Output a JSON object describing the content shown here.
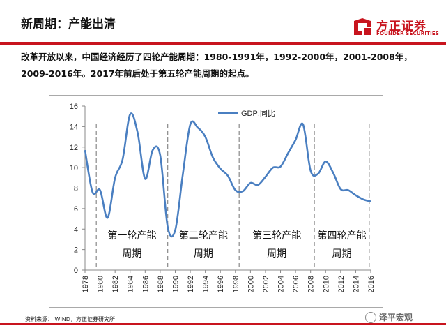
{
  "header": {
    "title": "新周期：产能出清",
    "logo_cn": "方正证券",
    "logo_en": "FOUNDER SECURITIES"
  },
  "body": {
    "text": "改革开放以来，中国经济经历了四轮产能周期：1980-1991年，1992-2000年，2001-2008年，2009-2016年。2017年前后处于第五轮产能周期的起点。"
  },
  "footer": {
    "source": "资料来源： WIND，方正证券研究所",
    "watermark": "泽平宏观"
  },
  "colors": {
    "accent": "#c8141e",
    "line": "#4a7fc1"
  },
  "chart_data": {
    "type": "line",
    "title": "",
    "xlabel": "",
    "ylabel": "",
    "ylim": [
      0,
      16
    ],
    "yticks": [
      0,
      2,
      4,
      6,
      8,
      10,
      12,
      14,
      16
    ],
    "xlim": [
      1978,
      2016
    ],
    "xticks": [
      "1978",
      "1980",
      "1982",
      "1984",
      "1986",
      "1988",
      "1990",
      "1992",
      "1994",
      "1996",
      "1998",
      "2000",
      "2002",
      "2004",
      "2006",
      "2008",
      "2010",
      "2012",
      "2014",
      "2016"
    ],
    "legend": {
      "label": "GDP:同比",
      "position": "top"
    },
    "series": [
      {
        "name": "GDP:同比",
        "x": [
          1978,
          1979,
          1980,
          1981,
          1982,
          1983,
          1984,
          1985,
          1986,
          1987,
          1988,
          1989,
          1990,
          1991,
          1992,
          1993,
          1994,
          1995,
          1996,
          1997,
          1998,
          1999,
          2000,
          2001,
          2002,
          2003,
          2004,
          2005,
          2006,
          2007,
          2008,
          2009,
          2010,
          2011,
          2012,
          2013,
          2014,
          2015,
          2016
        ],
        "values": [
          11.7,
          7.6,
          7.8,
          5.1,
          9.0,
          10.8,
          15.2,
          13.4,
          8.9,
          11.7,
          11.2,
          4.2,
          3.9,
          9.3,
          14.2,
          13.9,
          13.0,
          11.0,
          9.9,
          9.2,
          7.8,
          7.7,
          8.5,
          8.3,
          9.1,
          10.0,
          10.1,
          11.4,
          12.7,
          14.2,
          9.7,
          9.4,
          10.6,
          9.5,
          7.9,
          7.8,
          7.3,
          6.9,
          6.7
        ]
      }
    ],
    "cycles": [
      {
        "label": "第一轮产能\n周期",
        "start": 1979.5,
        "end": 1989
      },
      {
        "label": "第二轮产能\n周期",
        "start": 1989,
        "end": 1998.5
      },
      {
        "label": "第三轮产能\n周期",
        "start": 1998.5,
        "end": 2008.5
      },
      {
        "label": "第四轮产能\n周期",
        "start": 2008.5,
        "end": 2015.8
      }
    ],
    "cycle_lines": [
      1979.5,
      1989,
      1998.5,
      2008.5,
      2015.8
    ]
  }
}
